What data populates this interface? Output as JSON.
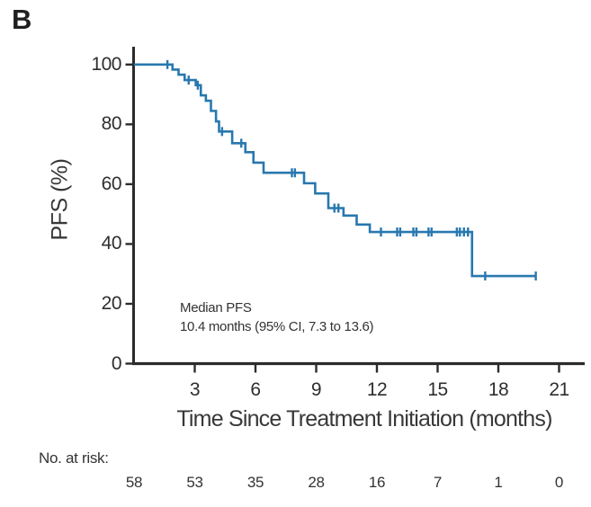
{
  "panel_label": "B",
  "colors": {
    "curve": "#2878af",
    "axis": "#2b2b2b",
    "text": "#333333"
  },
  "chart_data": {
    "type": "line",
    "subtype": "kaplan-meier-step-curve",
    "title": "",
    "xlabel": "Time Since Treatment Initiation (months)",
    "ylabel": "PFS (%)",
    "xlim": [
      0,
      21.5
    ],
    "ylim": [
      0,
      100
    ],
    "xticks": [
      3,
      6,
      9,
      12,
      15,
      18,
      21
    ],
    "yticks": [
      0,
      20,
      40,
      60,
      80,
      100
    ],
    "grid": false,
    "legend": "none",
    "annotation": {
      "line1": "Median PFS",
      "line2": "10.4 months (95% CI, 7.3 to 13.6)"
    },
    "series": [
      {
        "name": "PFS",
        "color": "#2878af",
        "end_time": 19.85,
        "steps": [
          [
            0,
            100
          ],
          [
            1.9,
            98.3
          ],
          [
            2.2,
            96.6
          ],
          [
            2.5,
            94.8
          ],
          [
            3.05,
            93.1
          ],
          [
            3.3,
            89.7
          ],
          [
            3.55,
            87.9
          ],
          [
            3.8,
            84.5
          ],
          [
            4.05,
            81.0
          ],
          [
            4.2,
            77.6
          ],
          [
            4.85,
            73.7
          ],
          [
            5.5,
            70.7
          ],
          [
            5.9,
            67.2
          ],
          [
            6.4,
            63.8
          ],
          [
            8.4,
            60.3
          ],
          [
            8.95,
            56.9
          ],
          [
            9.6,
            52.0
          ],
          [
            10.35,
            49.5
          ],
          [
            11.0,
            46.5
          ],
          [
            11.65,
            44.0
          ],
          [
            16.7,
            29.3
          ]
        ],
        "censor_marks": [
          [
            1.65,
            100
          ],
          [
            2.7,
            94.8
          ],
          [
            3.15,
            93.1
          ],
          [
            4.35,
            77.6
          ],
          [
            5.3,
            73.7
          ],
          [
            7.8,
            63.8
          ],
          [
            7.95,
            63.8
          ],
          [
            9.9,
            52.0
          ],
          [
            10.1,
            52.0
          ],
          [
            12.2,
            44.0
          ],
          [
            13.0,
            44.0
          ],
          [
            13.15,
            44.0
          ],
          [
            13.8,
            44.0
          ],
          [
            13.95,
            44.0
          ],
          [
            14.55,
            44.0
          ],
          [
            14.7,
            44.0
          ],
          [
            15.95,
            44.0
          ],
          [
            16.1,
            44.0
          ],
          [
            16.3,
            44.0
          ],
          [
            16.5,
            44.0
          ],
          [
            17.35,
            29.3
          ],
          [
            19.85,
            29.3
          ]
        ]
      }
    ],
    "at_risk": {
      "label": "No. at risk:",
      "times": [
        0,
        3,
        6,
        9,
        12,
        15,
        18,
        21
      ],
      "counts": [
        58,
        53,
        35,
        28,
        16,
        7,
        1,
        0
      ]
    }
  }
}
